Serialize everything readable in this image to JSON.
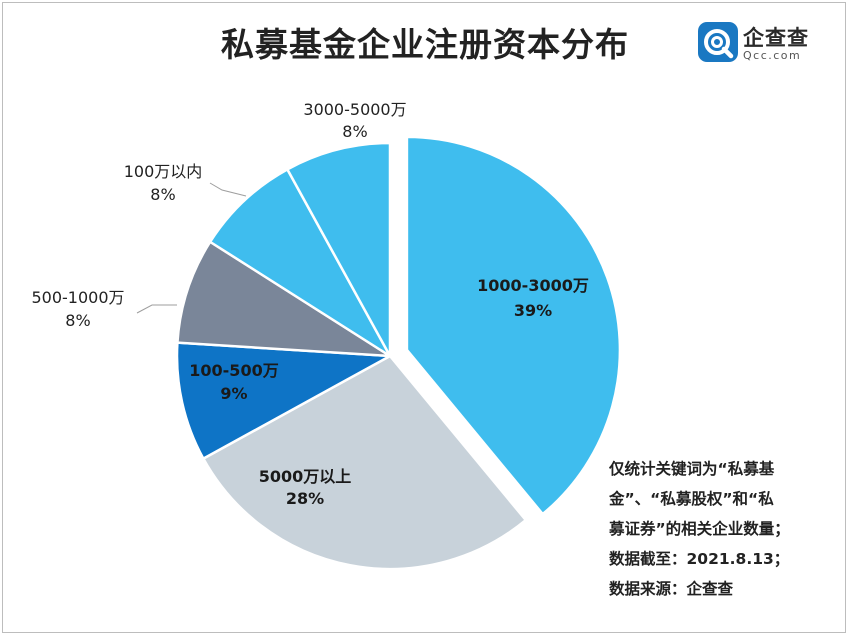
{
  "title": "私募基金企业注册资本分布",
  "logo": {
    "name": "企查查",
    "url": "Qcc.com",
    "color": "#1a78c2"
  },
  "chart_data": {
    "type": "pie",
    "title": "私募基金企业注册资本分布",
    "slices": [
      {
        "label": "1000-3000万",
        "value": 39,
        "display": "39%",
        "color": "#3fbdee",
        "exploded": true
      },
      {
        "label": "5000万以上",
        "value": 28,
        "display": "28%",
        "color": "#c8d2da"
      },
      {
        "label": "100-500万",
        "value": 9,
        "display": "9%",
        "color": "#0e74c6"
      },
      {
        "label": "500-1000万",
        "value": 8,
        "display": "8%",
        "color": "#7a8699"
      },
      {
        "label": "100万以内",
        "value": 8,
        "display": "8%",
        "color": "#3fbdee"
      },
      {
        "label": "3000-5000万",
        "value": 8,
        "display": "8%",
        "color": "#3fbdee"
      }
    ]
  },
  "note": [
    "仅统计关键词为“私募基",
    "金”、“私募股权”和“私",
    "募证券”的相关企业数量；",
    "数据截至：2021.8.13；",
    "数据来源：企查查"
  ]
}
